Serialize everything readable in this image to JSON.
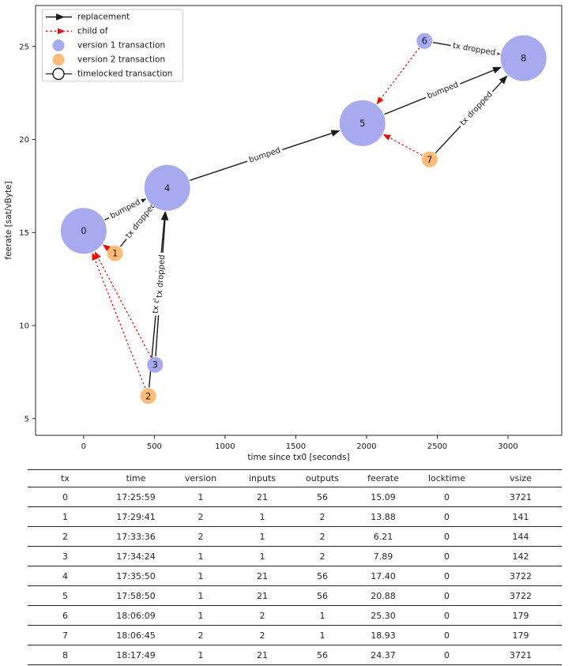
{
  "chart_data": {
    "type": "scatter",
    "title": "",
    "xlabel": "time since tx0 [seconds]",
    "ylabel": "feerate [sat/vByte]",
    "x_ticks": [
      0,
      500,
      1000,
      1500,
      2000,
      2500,
      3000
    ],
    "y_ticks": [
      5,
      10,
      15,
      20,
      25
    ],
    "xlim": [
      -340,
      3380
    ],
    "ylim": [
      4.1,
      27.2
    ],
    "grid": false,
    "legend_position": "upper left",
    "legend": [
      {
        "label": "replacement",
        "symbol": "arrow",
        "color": "#1a1a1a",
        "dashed": false
      },
      {
        "label": "child of",
        "symbol": "arrow",
        "color": "#ff0000",
        "dashed": true
      },
      {
        "label": "version 1 transaction",
        "symbol": "circle",
        "color": "#a7aaee"
      },
      {
        "label": "version 2 transaction",
        "symbol": "circle",
        "color": "#ffbb78"
      },
      {
        "label": "timelocked transaction",
        "symbol": "open-circle",
        "color": "#ffffff"
      }
    ],
    "colors": {
      "version1": "#a7aaee",
      "version2": "#ffbb78",
      "replacement_edge": "#1a1a1a",
      "child_of_edge": "#ff0000"
    },
    "nodes": [
      {
        "id": "0",
        "x": 0,
        "y": 15.09,
        "version": 1,
        "vsize": 3721
      },
      {
        "id": "1",
        "x": 222,
        "y": 13.88,
        "version": 2,
        "vsize": 141
      },
      {
        "id": "2",
        "x": 457,
        "y": 6.21,
        "version": 2,
        "vsize": 144
      },
      {
        "id": "3",
        "x": 505,
        "y": 7.89,
        "version": 1,
        "vsize": 142
      },
      {
        "id": "4",
        "x": 591,
        "y": 17.4,
        "version": 1,
        "vsize": 3722
      },
      {
        "id": "5",
        "x": 1971,
        "y": 20.88,
        "version": 1,
        "vsize": 3722
      },
      {
        "id": "6",
        "x": 2410,
        "y": 25.3,
        "version": 1,
        "vsize": 179
      },
      {
        "id": "7",
        "x": 2446,
        "y": 18.93,
        "version": 2,
        "vsize": 179
      },
      {
        "id": "8",
        "x": 3110,
        "y": 24.37,
        "version": 1,
        "vsize": 3721
      }
    ],
    "edges": [
      {
        "source": "0",
        "target": "4",
        "kind": "replacement",
        "label": "bumped"
      },
      {
        "source": "1",
        "target": "4",
        "kind": "replacement",
        "label": "tx dropped"
      },
      {
        "source": "2",
        "target": "4",
        "kind": "replacement",
        "label": "tx dropped"
      },
      {
        "source": "3",
        "target": "4",
        "kind": "replacement",
        "label": "tx dropped"
      },
      {
        "source": "4",
        "target": "5",
        "kind": "replacement",
        "label": "bumped"
      },
      {
        "source": "5",
        "target": "8",
        "kind": "replacement",
        "label": "bumped"
      },
      {
        "source": "6",
        "target": "8",
        "kind": "replacement",
        "label": "tx dropped"
      },
      {
        "source": "7",
        "target": "8",
        "kind": "replacement",
        "label": "tx dropped"
      },
      {
        "source": "1",
        "target": "0",
        "kind": "child_of",
        "label": ""
      },
      {
        "source": "2",
        "target": "0",
        "kind": "child_of",
        "label": ""
      },
      {
        "source": "3",
        "target": "0",
        "kind": "child_of",
        "label": ""
      },
      {
        "source": "6",
        "target": "5",
        "kind": "child_of",
        "label": ""
      },
      {
        "source": "7",
        "target": "5",
        "kind": "child_of",
        "label": ""
      }
    ]
  },
  "table": {
    "columns": [
      "tx",
      "time",
      "version",
      "inputs",
      "outputs",
      "feerate",
      "locktime",
      "vsize"
    ],
    "rows": [
      [
        "0",
        "17:25:59",
        "1",
        "21",
        "56",
        "15.09",
        "0",
        "3721"
      ],
      [
        "1",
        "17:29:41",
        "2",
        "1",
        "2",
        "13.88",
        "0",
        "141"
      ],
      [
        "2",
        "17:33:36",
        "2",
        "1",
        "2",
        "6.21",
        "0",
        "144"
      ],
      [
        "3",
        "17:34:24",
        "1",
        "1",
        "2",
        "7.89",
        "0",
        "142"
      ],
      [
        "4",
        "17:35:50",
        "1",
        "21",
        "56",
        "17.40",
        "0",
        "3722"
      ],
      [
        "5",
        "17:58:50",
        "1",
        "21",
        "56",
        "20.88",
        "0",
        "3722"
      ],
      [
        "6",
        "18:06:09",
        "1",
        "2",
        "1",
        "25.30",
        "0",
        "179"
      ],
      [
        "7",
        "18:06:45",
        "2",
        "2",
        "1",
        "18.93",
        "0",
        "179"
      ],
      [
        "8",
        "18:17:49",
        "1",
        "21",
        "56",
        "24.37",
        "0",
        "3721"
      ]
    ]
  }
}
